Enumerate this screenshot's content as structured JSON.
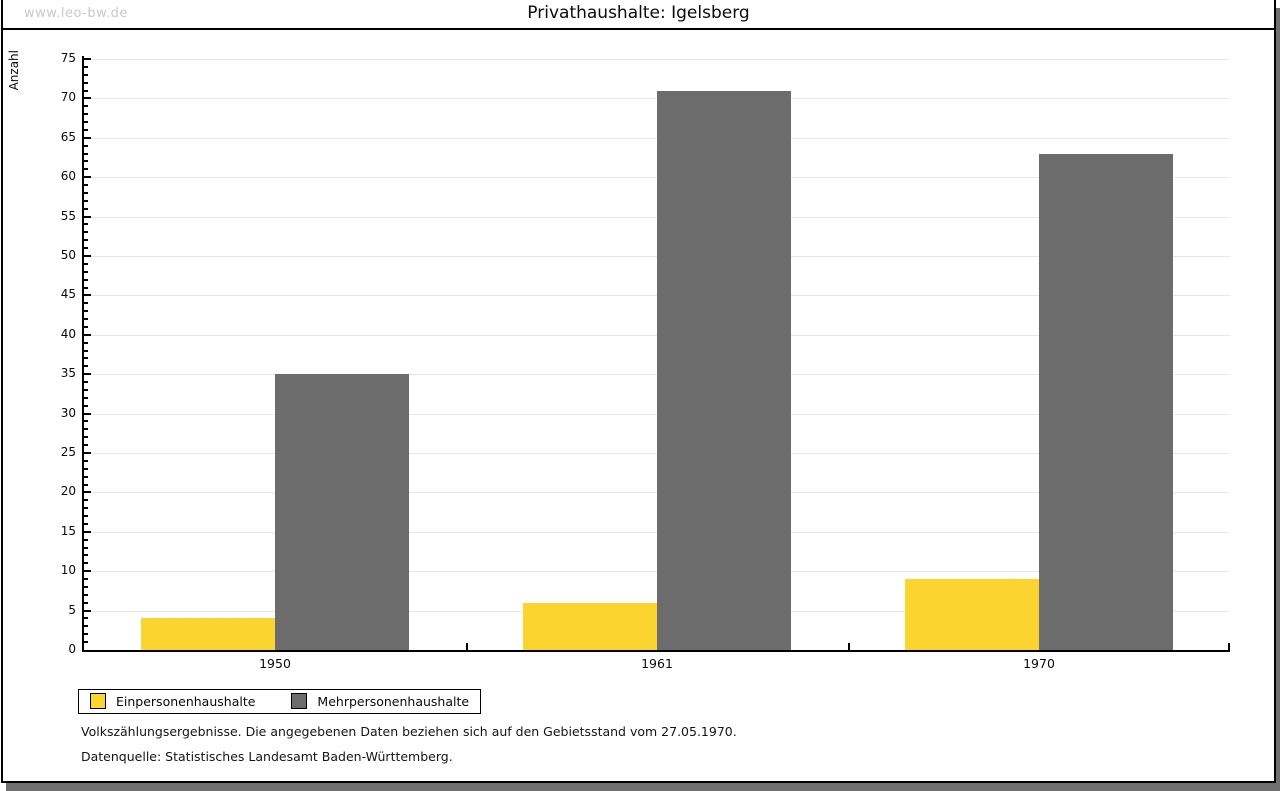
{
  "watermark": "www.leo-bw.de",
  "title": "Privathaushalte: Igelsberg",
  "chart_data": {
    "type": "bar",
    "title": "Privathaushalte: Igelsberg",
    "categories": [
      "1950",
      "1961",
      "1970"
    ],
    "series": [
      {
        "name": "Einpersonenhaushalte",
        "color": "#FCD42F",
        "values": [
          4,
          6,
          9
        ]
      },
      {
        "name": "Mehrpersonenhaushalte",
        "color": "#6C6C6C",
        "values": [
          35,
          71,
          63
        ]
      }
    ],
    "xlabel": "",
    "ylabel": "Anzahl",
    "ylim": [
      0,
      75
    ],
    "ytick_step": 5,
    "minor_tick_step": 1,
    "grid": true,
    "legend_position": "bottom-left"
  },
  "footnotes": [
    "Volkszählungsergebnisse. Die angegebenen Daten beziehen sich auf den Gebietsstand vom 27.05.1970.",
    "Datenquelle: Statistisches Landesamt Baden-Württemberg."
  ],
  "colors": {
    "bar_yellow": "#FCD42F",
    "bar_gray": "#6C6C6C",
    "gridline": "#e7e7e7",
    "axis": "#000000",
    "shadow": "#6f6f6f",
    "watermark": "#c9c9c9"
  }
}
